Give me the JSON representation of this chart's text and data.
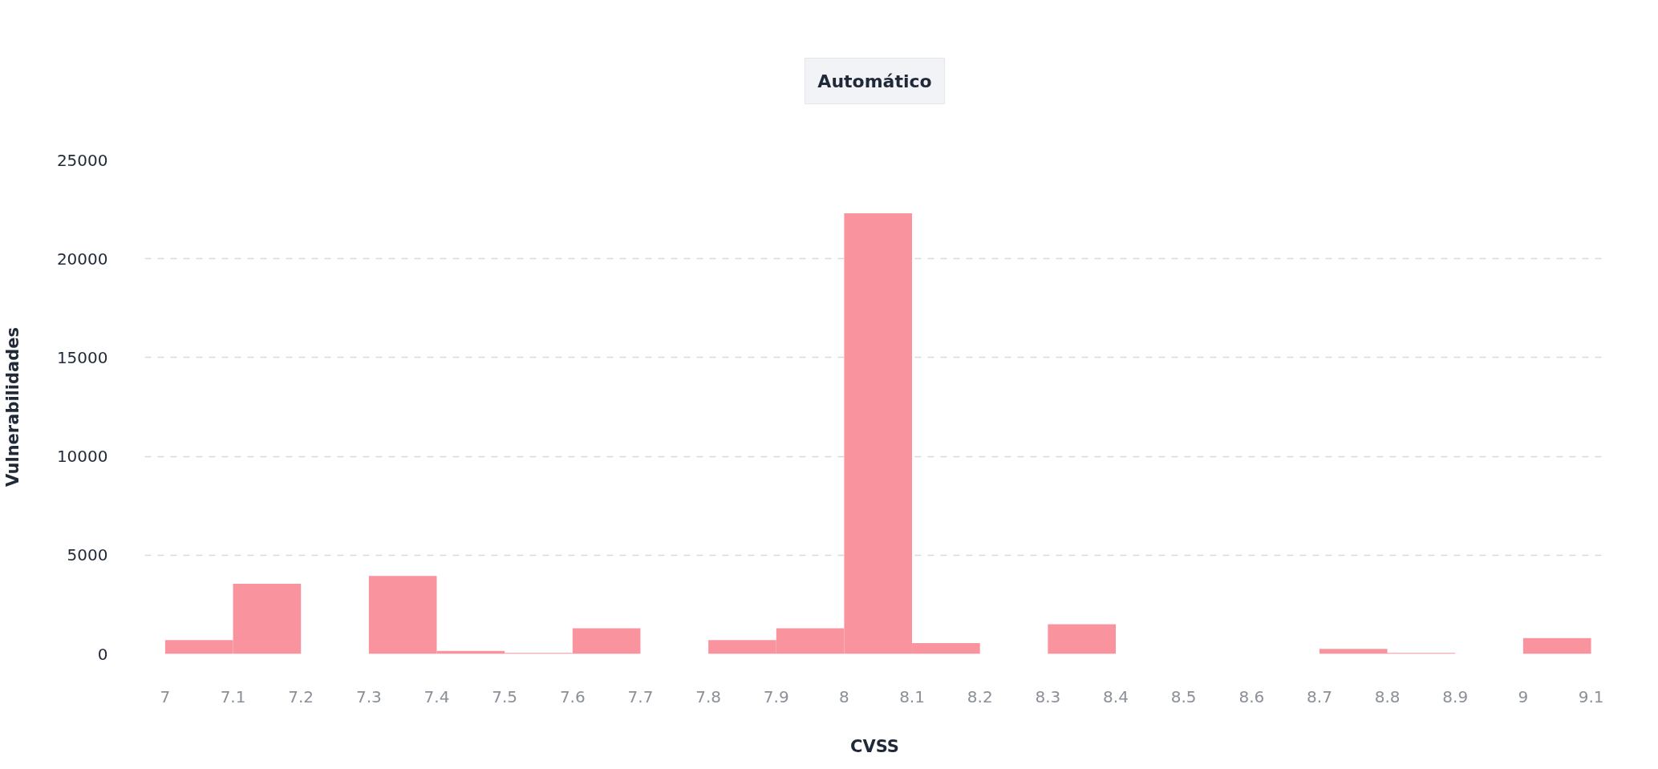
{
  "chart_data": {
    "type": "histogram",
    "title": "Automático",
    "xlabel": "CVSS",
    "ylabel": "Vulnerabilidades",
    "bins": [
      7,
      7.1,
      7.2,
      7.3,
      7.4,
      7.5,
      7.6,
      7.7,
      7.8,
      7.9,
      8,
      8.1,
      8.2,
      8.3,
      8.4,
      8.5,
      8.6,
      8.7,
      8.8,
      8.9,
      9,
      9.1
    ],
    "values": [
      700,
      3550,
      0,
      3950,
      150,
      50,
      1300,
      0,
      700,
      1300,
      22300,
      550,
      0,
      1500,
      0,
      0,
      0,
      250,
      50,
      0,
      800
    ],
    "color": "#f9949e",
    "xlim": [
      6.97,
      9.12
    ],
    "xticks": [
      7,
      7.1,
      7.2,
      7.3,
      7.4,
      7.5,
      7.6,
      7.7,
      7.8,
      7.9,
      8,
      8.1,
      8.2,
      8.3,
      8.4,
      8.5,
      8.6,
      8.7,
      8.8,
      8.9,
      9,
      9.1
    ],
    "ylim": [
      0,
      25000
    ],
    "yticks": [
      0,
      5000,
      10000,
      15000,
      20000,
      25000
    ],
    "grid": "y"
  }
}
